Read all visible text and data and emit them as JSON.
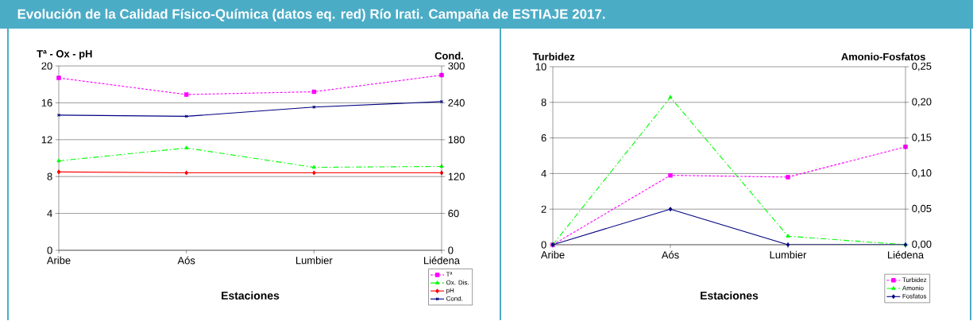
{
  "chart_data": [
    {
      "type": "line",
      "title": "Evolución de la Calidad Físico-Química (datos eq. red) Río Irati. Campaña de ESTIAJE 2017.",
      "xlabel": "Estaciones",
      "ylabel": "Tª - Ox - pH",
      "y2label": "Cond.",
      "categories": [
        "Aribe",
        "Aós",
        "Lumbier",
        "Liédena"
      ],
      "series": [
        {
          "name": "Tª",
          "color": "#ff00ff",
          "marker": "square",
          "line_style": "dashed",
          "values": [
            18.7,
            16.9,
            17.2,
            19.0
          ]
        },
        {
          "name": "Ox. Dis.",
          "color": "#00ff00",
          "marker": "triangle",
          "line_style": "dashdot",
          "values": [
            9.7,
            11.1,
            9.0,
            9.1
          ]
        },
        {
          "name": "pH",
          "color": "#ff0000",
          "marker": "diamond",
          "line_style": "solid",
          "values": [
            8.5,
            8.4,
            8.4,
            8.4
          ]
        },
        {
          "name": "Cond.",
          "color": "#000080",
          "marker": "cross",
          "line_style": "solid",
          "axis": "y2",
          "values": [
            220,
            218,
            233,
            242
          ]
        }
      ],
      "ylim": [
        0,
        20
      ],
      "yticks": [
        0,
        4,
        8,
        12,
        16,
        20
      ],
      "y2lim": [
        0,
        300
      ],
      "y2ticks": [
        0,
        60,
        120,
        180,
        240,
        300
      ],
      "grid": "y",
      "legend": "bottom right"
    },
    {
      "type": "line",
      "xlabel": "Estaciones",
      "ylabel": "Turbidez",
      "y2label": "Amonio-Fosfatos",
      "categories": [
        "Aribe",
        "Aós",
        "Lumbier",
        "Liédena"
      ],
      "series": [
        {
          "name": "Turbidez",
          "color": "#ff00ff",
          "marker": "square",
          "line_style": "dashed",
          "values": [
            0,
            3.9,
            3.8,
            5.5
          ]
        },
        {
          "name": "Amonio",
          "color": "#00ff00",
          "marker": "triangle",
          "line_style": "dashdot",
          "axis": "y2",
          "values": [
            0,
            0.207,
            0.012,
            0
          ]
        },
        {
          "name": "Fosfatos",
          "color": "#000080",
          "marker": "diamond",
          "line_style": "solid",
          "axis": "y2",
          "values": [
            0,
            0.05,
            0,
            0
          ]
        }
      ],
      "ylim": [
        0,
        10
      ],
      "yticks": [
        0,
        2,
        4,
        6,
        8,
        10
      ],
      "y2lim": [
        0,
        0.25
      ],
      "y2ticks": [
        {
          "value": 0,
          "label": "0,00"
        },
        {
          "value": 0.05,
          "label": "0,05"
        },
        {
          "value": 0.1,
          "label": "0,10"
        },
        {
          "value": 0.15,
          "label": "0,15"
        },
        {
          "value": 0.2,
          "label": "0,20"
        },
        {
          "value": 0.25,
          "label": "0,25"
        }
      ],
      "grid": "y",
      "legend": "bottom right"
    }
  ]
}
